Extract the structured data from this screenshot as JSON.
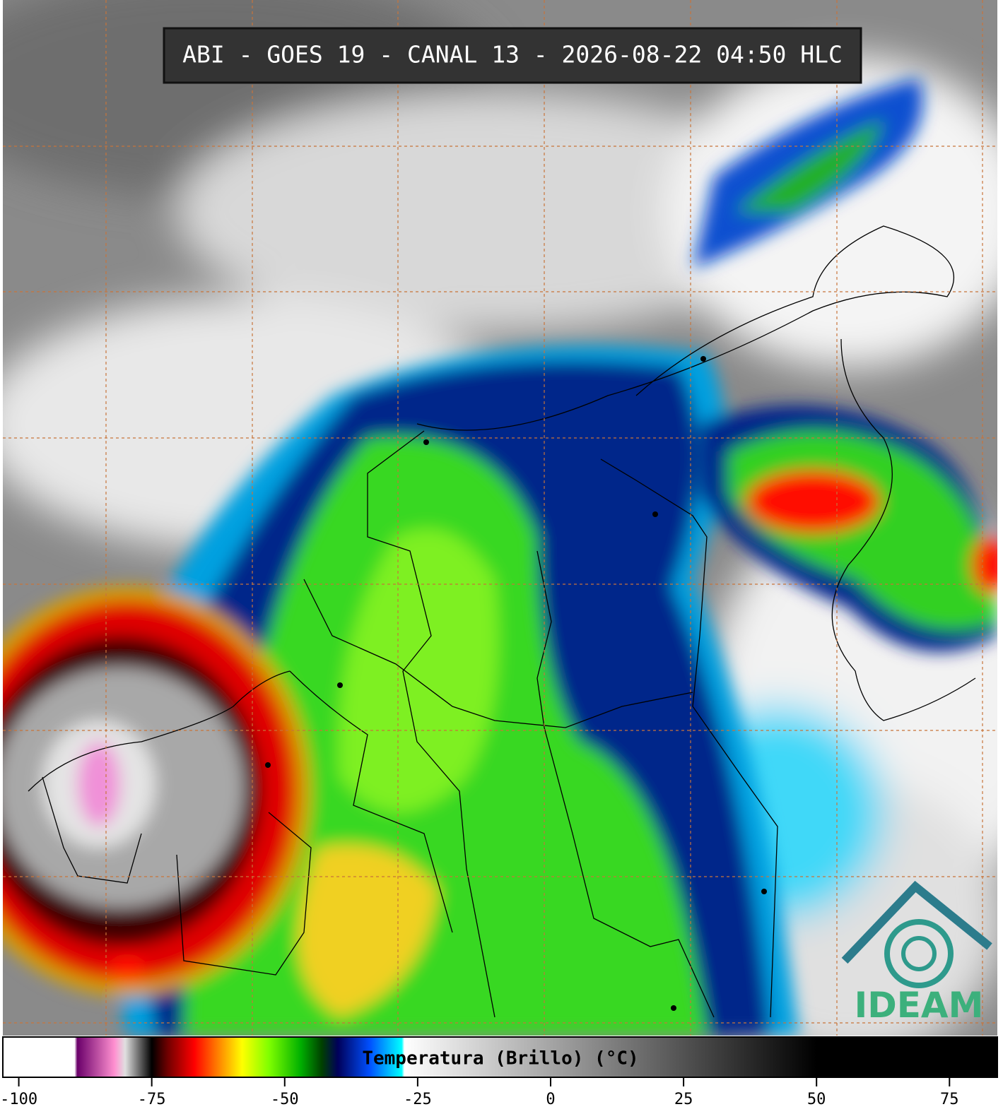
{
  "header": {
    "title": "ABI - GOES 19 - CANAL 13 - 2026-08-22 04:50 HLC"
  },
  "logo": {
    "text": "IDEAM"
  },
  "colorbar": {
    "label": "Temperatura (Brillo) (°C)",
    "lim": [
      -103,
      84
    ],
    "ticks": [
      -100,
      -75,
      -50,
      -25,
      0,
      25,
      50,
      75
    ],
    "stops": [
      {
        "value": -103,
        "color": "#ffffff"
      },
      {
        "value": -89.5,
        "color": "#ffffff"
      },
      {
        "value": -89,
        "color": "#6a006a"
      },
      {
        "value": -82,
        "color": "#ff90d0"
      },
      {
        "value": -80,
        "color": "#e0e0e0"
      },
      {
        "value": -75,
        "color": "#000000"
      },
      {
        "value": -72,
        "color": "#700000"
      },
      {
        "value": -67,
        "color": "#ff0000"
      },
      {
        "value": -62,
        "color": "#ff9000"
      },
      {
        "value": -58,
        "color": "#ffff00"
      },
      {
        "value": -53,
        "color": "#80ff00"
      },
      {
        "value": -47,
        "color": "#00b000"
      },
      {
        "value": -43,
        "color": "#004000"
      },
      {
        "value": -40,
        "color": "#00005a"
      },
      {
        "value": -34,
        "color": "#0050ff"
      },
      {
        "value": -28,
        "color": "#00ffff"
      },
      {
        "value": -27.5,
        "color": "#ffffff"
      },
      {
        "value": 50,
        "color": "#000000"
      },
      {
        "value": 84,
        "color": "#000000"
      }
    ]
  }
}
